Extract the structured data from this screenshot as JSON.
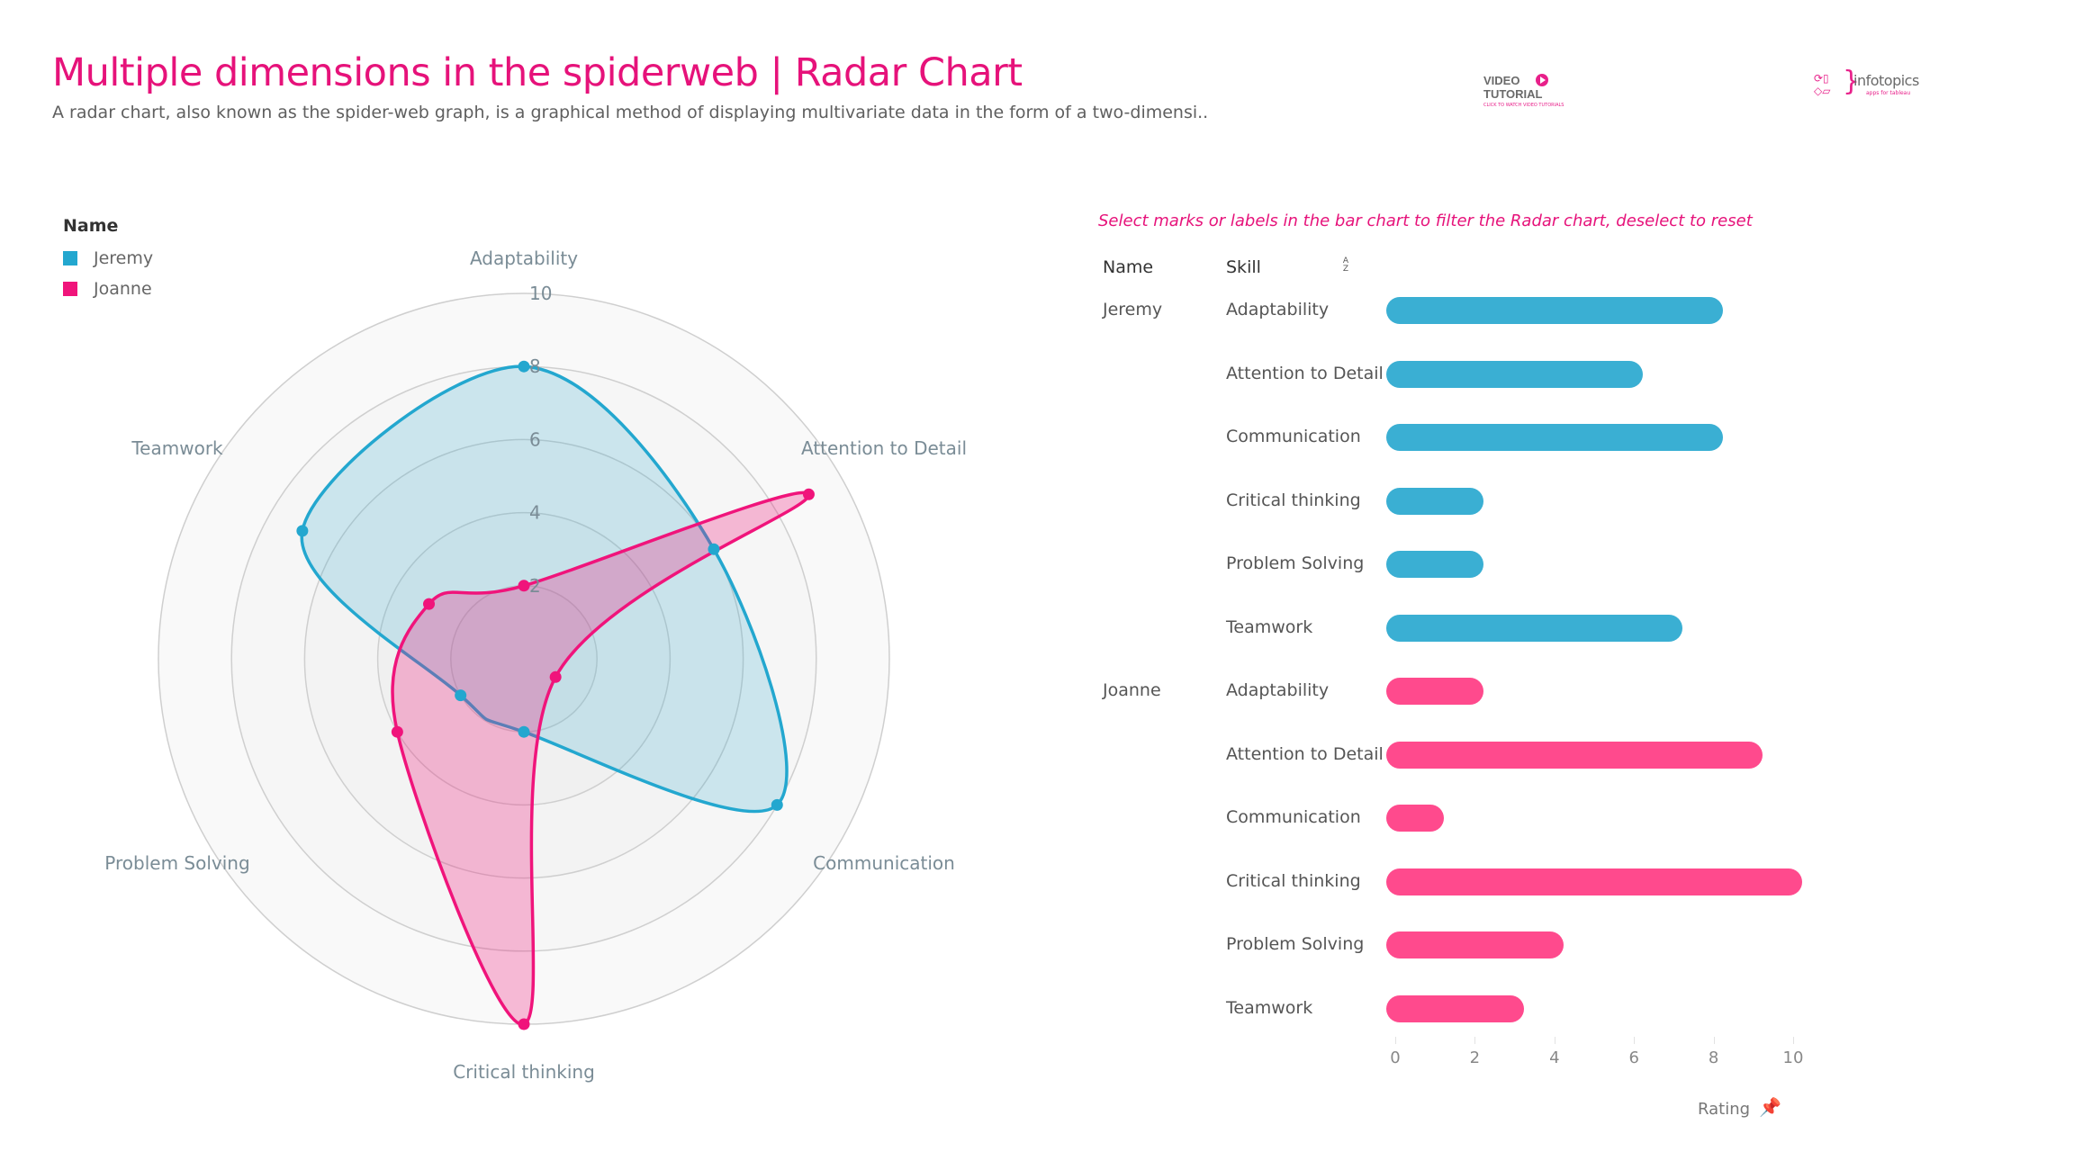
{
  "header": {
    "title": "Multiple dimensions in the spiderweb | Radar Chart",
    "subtitle": "A radar chart, also known as the spider-web graph, is a graphical method of displaying multivariate data in the form of a two-dimensi.."
  },
  "logos": {
    "video_line1": "VIDEO",
    "video_line2": "TUTORIAL",
    "video_caption": "CLICK TO WATCH VIDEO TUTORIALS",
    "video_icon": "play-circle-icon",
    "brand_name": "infotopics",
    "brand_tagline": "apps for tableau"
  },
  "legend": {
    "title": "Name",
    "items": [
      {
        "label": "Jeremy",
        "color": "#23a7cf"
      },
      {
        "label": "Joanne",
        "color": "#f0147b"
      }
    ]
  },
  "bar_panel": {
    "instruction": "Select marks or labels in the bar chart to filter the Radar chart, deselect to reset",
    "col_name": "Name",
    "col_skill": "Skill",
    "sort_icon_top": "A",
    "sort_icon_bottom": "Z",
    "x_title": "Rating",
    "pin_icon": "pin-icon"
  },
  "chart_data": [
    {
      "type": "radar",
      "title": "",
      "axes": [
        "Adaptability",
        "Attention to Detail",
        "Communication",
        "Critical thinking",
        "Problem Solving",
        "Teamwork"
      ],
      "rlim": [
        0,
        10
      ],
      "ring_ticks": [
        2,
        4,
        6,
        8,
        10
      ],
      "legend": "top-left",
      "series": [
        {
          "name": "Jeremy",
          "values": [
            8,
            6,
            8,
            2,
            2,
            7
          ],
          "color": "#23a7cf",
          "fill": "rgba(35,167,207,0.2)"
        },
        {
          "name": "Joanne",
          "values": [
            2,
            9,
            1,
            10,
            4,
            3
          ],
          "color": "#f0147b",
          "fill": "rgba(240,20,123,0.28)"
        }
      ]
    },
    {
      "type": "bar",
      "orientation": "horizontal",
      "xlabel": "Rating",
      "xlim": [
        0,
        10
      ],
      "xticks": [
        0,
        2,
        4,
        6,
        8,
        10
      ],
      "groups": [
        {
          "name": "Jeremy",
          "color": "#3aafd3",
          "categories": [
            "Adaptability",
            "Attention to Detail",
            "Communication",
            "Critical thinking",
            "Problem Solving",
            "Teamwork"
          ],
          "values": [
            8,
            6,
            8,
            2,
            2,
            7
          ]
        },
        {
          "name": "Joanne",
          "color": "#ff4a8d",
          "categories": [
            "Adaptability",
            "Attention to Detail",
            "Communication",
            "Critical thinking",
            "Problem Solving",
            "Teamwork"
          ],
          "values": [
            2,
            9,
            1,
            10,
            4,
            3
          ]
        }
      ]
    }
  ]
}
